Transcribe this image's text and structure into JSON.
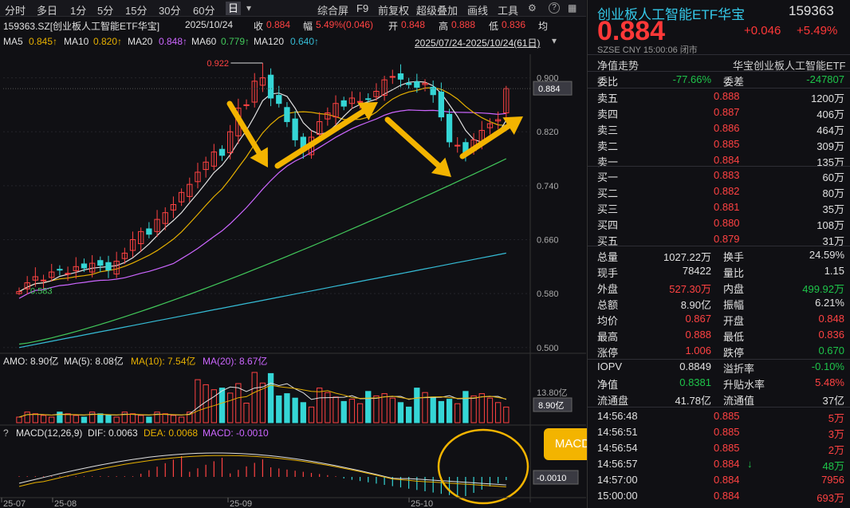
{
  "toolbar": {
    "periods": [
      "分时",
      "多日",
      "1分",
      "5分",
      "15分",
      "30分",
      "60分",
      "日"
    ],
    "active_period": "日",
    "more": "▾",
    "tools": [
      "综合屏",
      "F9",
      "前复权",
      "超级叠加",
      "画线",
      "工具"
    ],
    "gear_icon": "⚙",
    "help_icon": "?",
    "layout_icon": "▦"
  },
  "info_line": {
    "code_name": "159363.SZ[创业板人工智能ETF华宝]",
    "date": "2025/10/24",
    "close_label": "收",
    "close": "0.884",
    "change_label": "幅",
    "change": "5.49%(0.046)",
    "open_label": "开",
    "open": "0.848",
    "high_label": "高",
    "high": "0.888",
    "low_label": "低",
    "low": "0.836",
    "avg_label": "均"
  },
  "ma_line": {
    "ma5": "MA5",
    "ma5_val": "0.845↑",
    "ma10": "MA10",
    "ma10_val": "0.820↑",
    "ma20": "MA20",
    "ma20_val": "0.848↑",
    "ma60": "MA60",
    "ma60_val": "0.779↑",
    "ma120": "MA120",
    "ma120_val": "0.640↑",
    "range": "2025/07/24-2025/10/24(61日)",
    "dropdown": "▾"
  },
  "price_axis": [
    "0.900",
    "0.820",
    "0.740",
    "0.660",
    "0.580",
    "0.500"
  ],
  "last_price_tag": "0.884",
  "high_mark": "0.922",
  "low_mark": "0.583",
  "vol_line": {
    "amo": "AMO: 8.90亿",
    "ma5": "MA(5): 8.08亿",
    "ma10": "MA(10): 7.54亿",
    "ma20": "MA(20): 8.67亿"
  },
  "vol_axis": "13.80亿",
  "vol_tag": "8.90亿",
  "macd_line": {
    "marker": "?",
    "title": "MACD(12,26,9)",
    "dif": "DIF: 0.0063",
    "dea": "DEA: 0.0068",
    "macd": "MACD: -0.0010"
  },
  "macd_tag": "-0.0010",
  "date_axis": [
    "25-07",
    "25-08",
    "25-09",
    "25-10"
  ],
  "annotation": "MACD金叉有望形成",
  "colors": {
    "up": "#ff4242",
    "down": "#35d6d6",
    "ma5": "#e0e0e0",
    "ma10": "#e6b000",
    "ma20": "#cc66ff",
    "ma60": "#42c95b",
    "ma120": "#35bcd6",
    "arrow": "#f3b400",
    "annot": "#f3b400"
  },
  "chart_data": {
    "type": "candlestick",
    "x": [
      "2025-07-24",
      "2025-10-24"
    ],
    "ylim": [
      0.5,
      0.93
    ],
    "first_close": 0.583,
    "max_high": 0.922,
    "last": {
      "date": "2025-10-24",
      "open": 0.848,
      "high": 0.888,
      "low": 0.836,
      "close": 0.884
    }
  },
  "quote": {
    "name": "创业板人工智能ETF华宝",
    "code": "159363",
    "price": "0.884",
    "change": "+0.046",
    "pct": "+5.49%",
    "sub": "SZSE  CNY  15:00:06  闭市",
    "tab1": "净值走势",
    "tab2": "华宝创业板人工智能ETF",
    "weibi_label": "委比",
    "weibi": "-77.66%",
    "weicha_label": "委差",
    "weicha": "-247807",
    "asks": [
      {
        "label": "卖五",
        "price": "0.888",
        "vol": "1200万"
      },
      {
        "label": "卖四",
        "price": "0.887",
        "vol": "406万"
      },
      {
        "label": "卖三",
        "price": "0.886",
        "vol": "464万"
      },
      {
        "label": "卖二",
        "price": "0.885",
        "vol": "309万"
      },
      {
        "label": "卖一",
        "price": "0.884",
        "vol": "135万"
      }
    ],
    "bids": [
      {
        "label": "买一",
        "price": "0.883",
        "vol": "60万"
      },
      {
        "label": "买二",
        "price": "0.882",
        "vol": "80万"
      },
      {
        "label": "买三",
        "price": "0.881",
        "vol": "35万"
      },
      {
        "label": "买四",
        "price": "0.880",
        "vol": "108万"
      },
      {
        "label": "买五",
        "price": "0.879",
        "vol": "31万"
      }
    ],
    "stats": [
      {
        "l1": "总量",
        "v1": "1027.22万",
        "c1": "w",
        "l2": "换手",
        "v2": "24.59%",
        "c2": "w"
      },
      {
        "l1": "现手",
        "v1": "78422",
        "c1": "w",
        "l2": "量比",
        "v2": "1.15",
        "c2": "w"
      },
      {
        "l1": "外盘",
        "v1": "527.30万",
        "c1": "r",
        "l2": "内盘",
        "v2": "499.92万",
        "c2": "g"
      },
      {
        "l1": "总额",
        "v1": "8.90亿",
        "c1": "w",
        "l2": "振幅",
        "v2": "6.21%",
        "c2": "w"
      },
      {
        "l1": "均价",
        "v1": "0.867",
        "c1": "r",
        "l2": "开盘",
        "v2": "0.848",
        "c2": "r"
      },
      {
        "l1": "最高",
        "v1": "0.888",
        "c1": "r",
        "l2": "最低",
        "v2": "0.836",
        "c2": "r"
      },
      {
        "l1": "涨停",
        "v1": "1.006",
        "c1": "r",
        "l2": "跌停",
        "v2": "0.670",
        "c2": "g"
      }
    ],
    "fund": [
      {
        "l1": "IOPV",
        "v1": "0.8849",
        "c1": "w",
        "l2": "溢折率",
        "v2": "-0.10%",
        "c2": "g"
      },
      {
        "l1": "净值",
        "v1": "0.8381",
        "c1": "g",
        "l2": "升贴水率",
        "v2": "5.48%",
        "c2": "r"
      },
      {
        "l1": "流通盘",
        "v1": "41.78亿",
        "c1": "w",
        "l2": "流通值",
        "v2": "37亿",
        "c2": "w"
      }
    ],
    "ticks": [
      {
        "t": "14:56:48",
        "p": "0.885",
        "v": "5万",
        "vc": "r",
        "arrow": ""
      },
      {
        "t": "14:56:51",
        "p": "0.885",
        "v": "3万",
        "vc": "r",
        "arrow": ""
      },
      {
        "t": "14:56:54",
        "p": "0.885",
        "v": "2万",
        "vc": "r",
        "arrow": ""
      },
      {
        "t": "14:56:57",
        "p": "0.884",
        "v": "48万",
        "vc": "g",
        "arrow": "↓"
      },
      {
        "t": "14:57:00",
        "p": "0.884",
        "v": "7956",
        "vc": "r",
        "arrow": ""
      },
      {
        "t": "15:00:00",
        "p": "0.884",
        "v": "693万",
        "vc": "r",
        "arrow": ""
      }
    ]
  }
}
